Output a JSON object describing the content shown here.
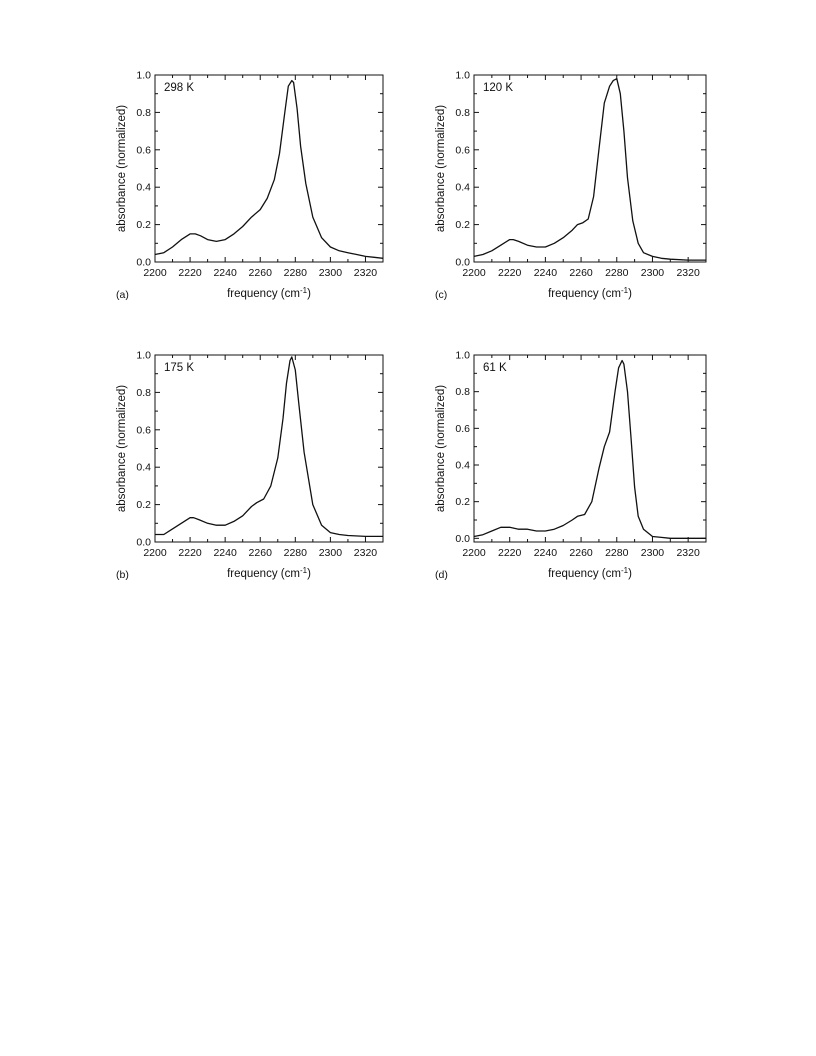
{
  "chart_data": [
    {
      "type": "line",
      "panel": "(a)",
      "annotation": "298 K",
      "xlabel": "frequency (cm",
      "xlabel_sup": "-1",
      "ylabel": "absorbance (normalized)",
      "xlim": [
        2200,
        2330
      ],
      "ylim": [
        0.0,
        1.0
      ],
      "xticks": [
        2200,
        2220,
        2240,
        2260,
        2280,
        2300,
        2320
      ],
      "yticks": [
        "0.0",
        "0.2",
        "0.4",
        "0.6",
        "0.8",
        "1.0"
      ],
      "series": [
        {
          "x": [
            2200,
            2205,
            2210,
            2215,
            2220,
            2223,
            2226,
            2230,
            2235,
            2240,
            2245,
            2250,
            2255,
            2260,
            2264,
            2268,
            2271,
            2274,
            2276,
            2278,
            2279,
            2281,
            2283,
            2286,
            2290,
            2295,
            2300,
            2305,
            2310,
            2315,
            2320,
            2325,
            2330
          ],
          "y": [
            0.04,
            0.05,
            0.08,
            0.12,
            0.15,
            0.15,
            0.14,
            0.12,
            0.11,
            0.12,
            0.15,
            0.19,
            0.24,
            0.28,
            0.34,
            0.44,
            0.58,
            0.8,
            0.94,
            0.97,
            0.96,
            0.82,
            0.62,
            0.42,
            0.24,
            0.13,
            0.08,
            0.06,
            0.05,
            0.04,
            0.03,
            0.025,
            0.02
          ]
        }
      ]
    },
    {
      "type": "line",
      "panel": "(b)",
      "annotation": "175 K",
      "xlabel": "frequency (cm",
      "xlabel_sup": "-1",
      "ylabel": "absorbance (normalized)",
      "xlim": [
        2200,
        2330
      ],
      "ylim": [
        0.0,
        1.0
      ],
      "xticks": [
        2200,
        2220,
        2240,
        2260,
        2280,
        2300,
        2320
      ],
      "yticks": [
        "0.0",
        "0.2",
        "0.4",
        "0.6",
        "0.8",
        "1.0"
      ],
      "series": [
        {
          "x": [
            2200,
            2205,
            2210,
            2215,
            2220,
            2222,
            2225,
            2230,
            2235,
            2240,
            2245,
            2250,
            2255,
            2258,
            2262,
            2266,
            2270,
            2273,
            2275,
            2277,
            2278,
            2280,
            2282,
            2285,
            2290,
            2295,
            2300,
            2305,
            2310,
            2320,
            2330
          ],
          "y": [
            0.04,
            0.04,
            0.07,
            0.1,
            0.13,
            0.13,
            0.12,
            0.1,
            0.09,
            0.09,
            0.11,
            0.14,
            0.19,
            0.21,
            0.23,
            0.3,
            0.45,
            0.66,
            0.85,
            0.97,
            0.99,
            0.92,
            0.74,
            0.48,
            0.2,
            0.09,
            0.05,
            0.04,
            0.035,
            0.03,
            0.03
          ]
        }
      ]
    },
    {
      "type": "line",
      "panel": "(c)",
      "annotation": "120 K",
      "xlabel": "frequency (cm",
      "xlabel_sup": "-1",
      "ylabel": "absorbance (normalized)",
      "xlim": [
        2200,
        2330
      ],
      "ylim": [
        0.0,
        1.0
      ],
      "xticks": [
        2200,
        2220,
        2240,
        2260,
        2280,
        2300,
        2320
      ],
      "yticks": [
        "0.0",
        "0.2",
        "0.4",
        "0.6",
        "0.8",
        "1.0"
      ],
      "series": [
        {
          "x": [
            2200,
            2205,
            2210,
            2215,
            2220,
            2222,
            2225,
            2230,
            2235,
            2240,
            2245,
            2250,
            2255,
            2258,
            2261,
            2264,
            2267,
            2270,
            2273,
            2276,
            2278,
            2280,
            2282,
            2284,
            2286,
            2289,
            2292,
            2295,
            2300,
            2305,
            2310,
            2320,
            2330
          ],
          "y": [
            0.03,
            0.04,
            0.06,
            0.09,
            0.12,
            0.12,
            0.11,
            0.09,
            0.08,
            0.08,
            0.1,
            0.13,
            0.17,
            0.2,
            0.21,
            0.23,
            0.35,
            0.6,
            0.85,
            0.94,
            0.97,
            0.98,
            0.9,
            0.7,
            0.45,
            0.22,
            0.1,
            0.05,
            0.03,
            0.02,
            0.015,
            0.01,
            0.01
          ]
        }
      ]
    },
    {
      "type": "line",
      "panel": "(d)",
      "annotation": "61 K",
      "xlabel": "frequency (cm",
      "xlabel_sup": "-1",
      "ylabel": "absorbance (normalized)",
      "xlim": [
        2200,
        2330
      ],
      "ylim": [
        -0.02,
        1.0
      ],
      "xticks": [
        2200,
        2220,
        2240,
        2260,
        2280,
        2300,
        2320
      ],
      "yticks": [
        "0.0",
        "0.2",
        "0.4",
        "0.6",
        "0.8",
        "1.0"
      ],
      "series": [
        {
          "x": [
            2200,
            2205,
            2210,
            2215,
            2220,
            2225,
            2230,
            2235,
            2240,
            2245,
            2250,
            2255,
            2258,
            2262,
            2266,
            2270,
            2273,
            2276,
            2279,
            2281,
            2283,
            2284,
            2286,
            2288,
            2290,
            2292,
            2295,
            2300,
            2305,
            2310,
            2320,
            2330
          ],
          "y": [
            0.01,
            0.02,
            0.04,
            0.06,
            0.06,
            0.05,
            0.05,
            0.04,
            0.04,
            0.05,
            0.07,
            0.1,
            0.12,
            0.13,
            0.2,
            0.38,
            0.5,
            0.58,
            0.8,
            0.93,
            0.97,
            0.95,
            0.8,
            0.55,
            0.28,
            0.12,
            0.05,
            0.01,
            0.005,
            0.0,
            0.0,
            0.0
          ]
        }
      ]
    }
  ]
}
